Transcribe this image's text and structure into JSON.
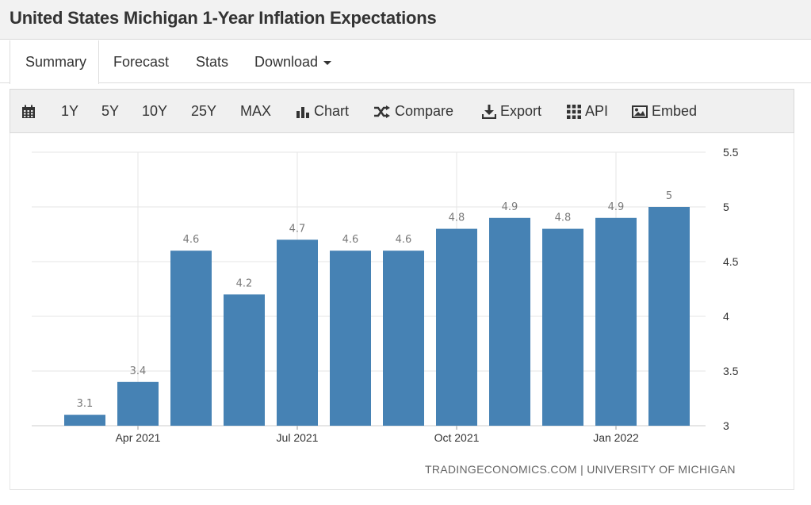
{
  "page": {
    "title": "United States Michigan 1-Year Inflation Expectations"
  },
  "tabs": [
    {
      "label": "Summary",
      "active": true
    },
    {
      "label": "Forecast"
    },
    {
      "label": "Stats"
    },
    {
      "label": "Download"
    }
  ],
  "toolbar": {
    "calendar_icon": "calendar-icon",
    "ranges": [
      "1Y",
      "5Y",
      "10Y",
      "25Y",
      "MAX"
    ],
    "chart_label": "Chart",
    "compare_label": "Compare",
    "export_label": "Export",
    "api_label": "API",
    "embed_label": "Embed"
  },
  "colors": {
    "bar": "#4682b4",
    "grid": "#e6e6e6",
    "label": "#7a7a7a"
  },
  "source": "TRADINGECONOMICS.COM | UNIVERSITY OF MICHIGAN",
  "chart_data": {
    "type": "bar",
    "categories": [
      "2021-03",
      "2021-04",
      "2021-05",
      "2021-06",
      "2021-07",
      "2021-08",
      "2021-09",
      "2021-10",
      "2021-11",
      "2021-12",
      "2022-01",
      "2022-02"
    ],
    "values": [
      3.1,
      3.4,
      4.6,
      4.2,
      4.7,
      4.6,
      4.6,
      4.8,
      4.9,
      4.8,
      4.9,
      5
    ],
    "data_labels": [
      "3.1",
      "3.4",
      "4.6",
      "4.2",
      "4.7",
      "4.6",
      "4.6",
      "4.8",
      "4.9",
      "4.8",
      "4.9",
      "5"
    ],
    "x_tick_labels": [
      {
        "label": "Apr 2021",
        "category": "2021-04"
      },
      {
        "label": "Jul 2021",
        "category": "2021-07"
      },
      {
        "label": "Oct 2021",
        "category": "2021-10"
      },
      {
        "label": "Jan 2022",
        "category": "2022-01"
      }
    ],
    "y_ticks": [
      "3",
      "3.5",
      "4",
      "4.5",
      "5",
      "5.5"
    ],
    "ylim": [
      3,
      5.5
    ],
    "y_axis_side": "right",
    "grid": true,
    "legend": false
  }
}
